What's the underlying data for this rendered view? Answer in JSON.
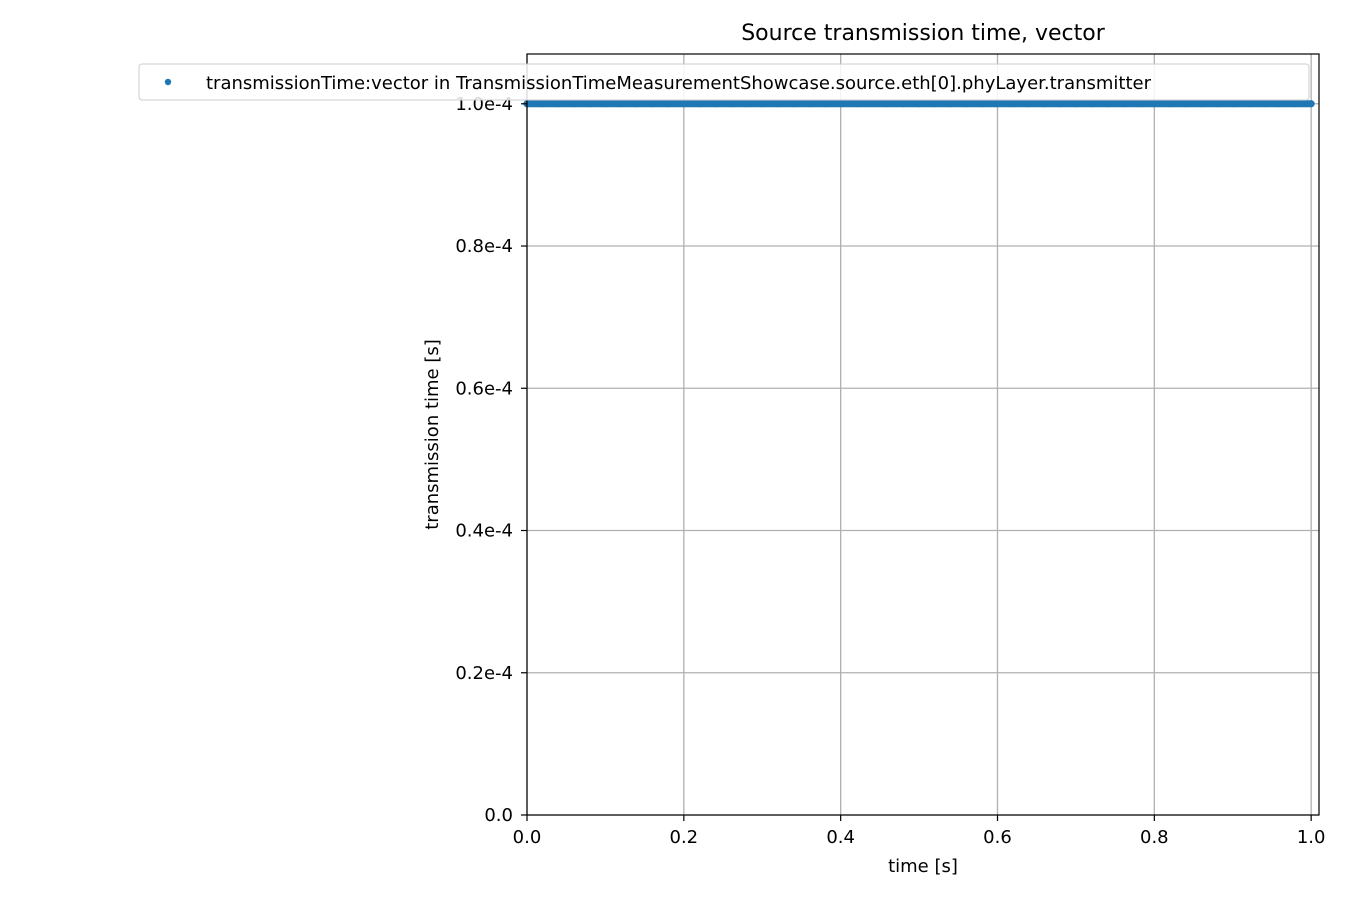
{
  "chart_data": {
    "type": "scatter",
    "title": "Source transmission time, vector",
    "xlabel": "time [s]",
    "ylabel": "transmission time [s]",
    "xlim": [
      0.0,
      1.01
    ],
    "ylim": [
      0.0,
      0.000107
    ],
    "x_ticks": [
      0.0,
      0.2,
      0.4,
      0.6,
      0.8,
      1.0
    ],
    "x_tick_labels": [
      "0.0",
      "0.2",
      "0.4",
      "0.6",
      "0.8",
      "1.0"
    ],
    "y_ticks": [
      0.0,
      2e-05,
      4e-05,
      6e-05,
      8e-05,
      0.0001
    ],
    "y_tick_labels": [
      "0.0",
      "0.2e-4",
      "0.4e-4",
      "0.6e-4",
      "0.8e-4",
      "1.0e-4"
    ],
    "grid": true,
    "legend_position": "top-right",
    "series_color": "#1f77b4",
    "series": [
      {
        "name": "transmissionTime:vector in TransmissionTimeMeasurementShowcase.source.eth[0].phyLayer.transmitter",
        "x": [
          0.0,
          0.02,
          0.04,
          0.06,
          0.08,
          0.1,
          0.12,
          0.14,
          0.16,
          0.18,
          0.2,
          0.22,
          0.24,
          0.26,
          0.28,
          0.3,
          0.32,
          0.34,
          0.36,
          0.38,
          0.4,
          0.42,
          0.44,
          0.46,
          0.48,
          0.5,
          0.52,
          0.54,
          0.56,
          0.58,
          0.6,
          0.62,
          0.64,
          0.66,
          0.68,
          0.7,
          0.72,
          0.74,
          0.76,
          0.78,
          0.8,
          0.82,
          0.84,
          0.86,
          0.88,
          0.9,
          0.92,
          0.94,
          0.96,
          0.98,
          1.0
        ],
        "y": [
          0.0001,
          0.0001,
          0.0001,
          0.0001,
          0.0001,
          0.0001,
          0.0001,
          0.0001,
          0.0001,
          0.0001,
          0.0001,
          0.0001,
          0.0001,
          0.0001,
          0.0001,
          0.0001,
          0.0001,
          0.0001,
          0.0001,
          0.0001,
          0.0001,
          0.0001,
          0.0001,
          0.0001,
          0.0001,
          0.0001,
          0.0001,
          0.0001,
          0.0001,
          0.0001,
          0.0001,
          0.0001,
          0.0001,
          0.0001,
          0.0001,
          0.0001,
          0.0001,
          0.0001,
          0.0001,
          0.0001,
          0.0001,
          0.0001,
          0.0001,
          0.0001,
          0.0001,
          0.0001,
          0.0001,
          0.0001,
          0.0001,
          0.0001,
          0.0001
        ]
      }
    ]
  }
}
